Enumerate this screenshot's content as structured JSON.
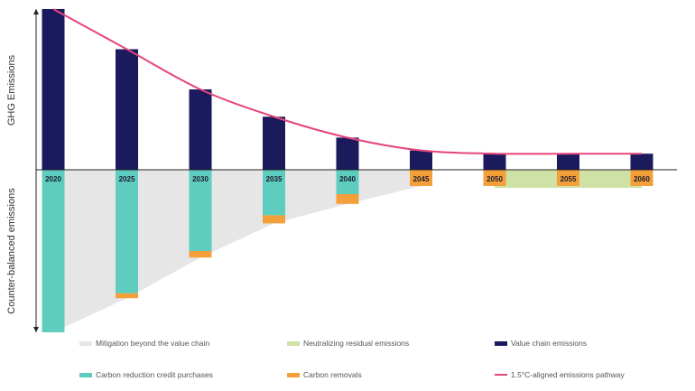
{
  "chart_data": {
    "type": "bar",
    "axis_titles": {
      "upper": "GHG Emissions",
      "lower": "Counter-balanced emissions"
    },
    "categories": [
      "2020",
      "2025",
      "2030",
      "2035",
      "2040",
      "2045",
      "2050",
      "2055",
      "2060"
    ],
    "series": [
      {
        "name": "Value chain emissions",
        "color": "#1b1a5c",
        "values": [
          100,
          75,
          50,
          33,
          20,
          12,
          10,
          10,
          10
        ]
      },
      {
        "name": "Carbon reduction credit purchases",
        "color": "#5ecdc0",
        "values": [
          100,
          76,
          50,
          28,
          15,
          4,
          0,
          0,
          0
        ]
      },
      {
        "name": "Carbon removals",
        "color": "#f4a03a",
        "values": [
          0,
          3,
          4,
          5,
          6,
          6,
          10,
          10,
          10
        ]
      }
    ],
    "areas": [
      {
        "name": "Mitigation beyond the value chain",
        "color": "#e6e6e6"
      },
      {
        "name": "Neutralizing residual emissions",
        "color": "#cfe1a5"
      }
    ],
    "line": {
      "name": "1.5°C-aligned emissions pathway",
      "color": "#e5457d",
      "values": [
        100,
        75,
        50,
        33,
        20,
        12,
        10,
        10,
        10
      ]
    },
    "ylim": [
      -100,
      100
    ]
  },
  "legend": [
    {
      "label": "Mitigation beyond the value chain",
      "color": "#e6e6e6",
      "kind": "area"
    },
    {
      "label": "Neutralizing residual emissions",
      "color": "#cfe1a5",
      "kind": "area"
    },
    {
      "label": "Value chain emissions",
      "color": "#1b1a5c",
      "kind": "bar"
    },
    {
      "label": "Carbon reduction credit purchases",
      "color": "#5ecdc0",
      "kind": "bar"
    },
    {
      "label": "Carbon removals",
      "color": "#f4a03a",
      "kind": "bar"
    },
    {
      "label": "1.5°C-aligned emissions pathway",
      "color": "#e5457d",
      "kind": "line"
    }
  ]
}
